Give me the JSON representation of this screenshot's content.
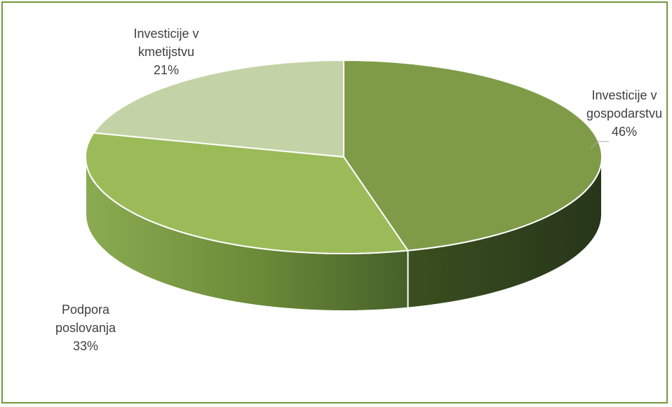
{
  "chart_data": {
    "type": "pie",
    "style": "3d",
    "title": "",
    "slices": [
      {
        "label_lines": [
          "Investicije v",
          "gospodarstvu"
        ],
        "value": 46,
        "value_label": "46%",
        "color": "#7f9b48"
      },
      {
        "label_lines": [
          "Podpora",
          "poslovanja"
        ],
        "value": 33,
        "value_label": "33%",
        "color": "#9bbb59"
      },
      {
        "label_lines": [
          "Investicije v",
          "kmetijstvu"
        ],
        "value": 21,
        "value_label": "21%",
        "color": "#c3d3a6"
      }
    ],
    "legend": "none",
    "border_color": "#6f9a3a"
  }
}
